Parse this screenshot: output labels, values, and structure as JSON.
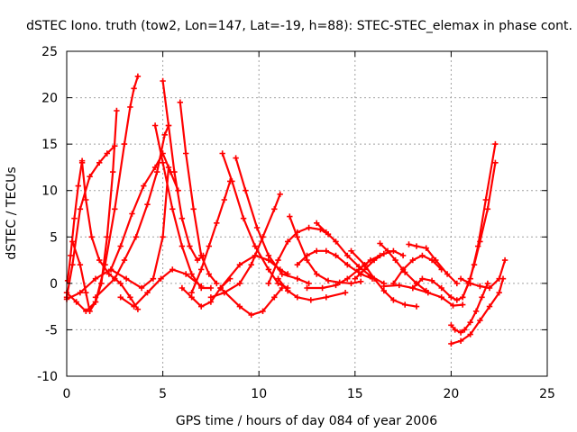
{
  "chart_data": {
    "type": "scatter",
    "title": "dSTEC Iono. truth (tow2, Lon=147, Lat=-19, h=88): STEC-STEC_elemax in phase cont.",
    "xlabel": "GPS time / hours of day 084 of year 2006",
    "ylabel": "dSTEC  / TECUs",
    "xlim": [
      0,
      25
    ],
    "ylim": [
      -10,
      25
    ],
    "xticks": [
      "0",
      "5",
      "10",
      "15",
      "20",
      "25"
    ],
    "yticks": [
      "-10",
      "-5",
      "0",
      "5",
      "10",
      "15",
      "20",
      "25"
    ],
    "grid": true,
    "marker": "plus",
    "color": "#ff0000",
    "series": [
      {
        "x": [
          0.05,
          0.2,
          0.4,
          0.6,
          0.8
        ],
        "y": [
          0.3,
          3.0,
          7.0,
          10.5,
          13.2
        ]
      },
      {
        "x": [
          0.8,
          1.0,
          1.3,
          1.7,
          2.2,
          2.8,
          3.3,
          3.7
        ],
        "y": [
          13.0,
          9.0,
          5.0,
          2.5,
          1.0,
          0.0,
          -1.5,
          -2.8
        ]
      },
      {
        "x": [
          0.0,
          0.5,
          1.0,
          1.5,
          2.0,
          2.5,
          3.0,
          3.3,
          3.5,
          3.7
        ],
        "y": [
          -1.0,
          -2.0,
          -3.0,
          -2.0,
          2.0,
          8.0,
          15.0,
          19.0,
          21.0,
          22.3
        ]
      },
      {
        "x": [
          0.0,
          0.3,
          0.7,
          1.2,
          1.7,
          2.1,
          2.5
        ],
        "y": [
          -1.5,
          2.0,
          8.0,
          11.5,
          13.0,
          14.0,
          14.8
        ]
      },
      {
        "x": [
          0.3,
          0.7,
          1.0,
          1.2,
          1.5,
          1.8,
          2.1,
          2.4,
          2.6
        ],
        "y": [
          4.5,
          2.0,
          -1.0,
          -3.0,
          -2.0,
          0.0,
          5.0,
          12.0,
          18.6
        ]
      },
      {
        "x": [
          0.0,
          0.7,
          1.5,
          2.3,
          3.1,
          3.9,
          4.5,
          5.0,
          5.3
        ],
        "y": [
          -1.7,
          -1.0,
          0.5,
          1.5,
          0.5,
          -0.5,
          0.5,
          5.0,
          12.5
        ]
      },
      {
        "x": [
          2.3,
          2.8,
          3.4,
          4.0,
          4.6,
          5.0,
          5.4,
          5.8
        ],
        "y": [
          1.5,
          4.0,
          7.5,
          10.5,
          12.5,
          14.0,
          12.0,
          10.0
        ]
      },
      {
        "x": [
          1.5,
          2.5,
          3.0,
          3.6,
          4.2,
          4.7,
          5.1,
          5.3
        ],
        "y": [
          -1.5,
          0.5,
          2.5,
          5.0,
          8.5,
          12.0,
          16.0,
          17.0
        ]
      },
      {
        "x": [
          5.0,
          5.3,
          5.6,
          6.0,
          6.4,
          6.8,
          7.1
        ],
        "y": [
          21.8,
          17.0,
          12.0,
          7.0,
          4.0,
          2.5,
          3.0
        ]
      },
      {
        "x": [
          4.6,
          5.0,
          5.5,
          6.0,
          6.5,
          7.0,
          7.5
        ],
        "y": [
          17.0,
          13.0,
          8.0,
          4.0,
          1.0,
          -0.5,
          -0.5
        ]
      },
      {
        "x": [
          5.9,
          6.2,
          6.6,
          7.0,
          7.4,
          7.8
        ],
        "y": [
          19.5,
          14.0,
          8.0,
          3.0,
          1.0,
          0.0
        ]
      },
      {
        "x": [
          2.8,
          3.5,
          4.2,
          4.9,
          5.5,
          6.2,
          7.0
        ],
        "y": [
          -1.5,
          -2.5,
          -1.0,
          0.5,
          1.5,
          1.0,
          -0.3
        ]
      },
      {
        "x": [
          6.0,
          6.5,
          7.0,
          7.5,
          8.0,
          8.5
        ],
        "y": [
          -0.5,
          -1.5,
          -2.5,
          -2.0,
          -0.5,
          0.5
        ]
      },
      {
        "x": [
          6.5,
          7.0,
          7.4,
          7.8,
          8.2,
          8.5
        ],
        "y": [
          -1.0,
          1.5,
          4.0,
          6.5,
          9.0,
          11.0
        ]
      },
      {
        "x": [
          8.1,
          8.6,
          9.2,
          9.8,
          10.5,
          11.0,
          11.5
        ],
        "y": [
          14.0,
          11.0,
          7.0,
          4.0,
          1.5,
          0.0,
          -0.5
        ]
      },
      {
        "x": [
          8.8,
          9.3,
          9.9,
          10.5,
          11.2,
          12.0,
          12.6
        ],
        "y": [
          13.5,
          10.0,
          6.0,
          3.0,
          1.0,
          0.5,
          0.0
        ]
      },
      {
        "x": [
          7.5,
          8.2,
          9.0,
          9.6,
          10.2,
          10.8,
          11.1
        ],
        "y": [
          -1.5,
          -1.0,
          0.0,
          2.0,
          5.0,
          8.0,
          9.6
        ]
      },
      {
        "x": [
          8.0,
          9.0,
          9.6,
          10.2,
          10.8,
          11.2
        ],
        "y": [
          -0.5,
          -2.5,
          -3.4,
          -3.0,
          -1.5,
          -0.5
        ]
      },
      {
        "x": [
          8.0,
          9.0,
          9.8,
          10.5,
          11.1,
          11.5
        ],
        "y": [
          -0.5,
          2.0,
          3.0,
          2.5,
          1.5,
          1.0
        ]
      },
      {
        "x": [
          10.5,
          11.0,
          11.5,
          12.0,
          12.6,
          13.2,
          13.6
        ],
        "y": [
          0.0,
          2.5,
          4.5,
          5.5,
          6.0,
          5.8,
          5.3
        ]
      },
      {
        "x": [
          11.0,
          11.5,
          12.0,
          12.7,
          13.5,
          14.5
        ],
        "y": [
          0.5,
          -0.8,
          -1.5,
          -1.8,
          -1.5,
          -1.0
        ]
      },
      {
        "x": [
          11.6,
          12.0,
          12.5,
          13.0,
          13.6,
          14.2,
          14.8,
          15.3
        ],
        "y": [
          7.2,
          5.0,
          2.5,
          1.0,
          0.3,
          0.1,
          0.0,
          0.2
        ]
      },
      {
        "x": [
          12.0,
          12.5,
          13.0,
          13.5,
          14.0,
          14.6,
          15.3,
          15.9
        ],
        "y": [
          2.0,
          3.0,
          3.5,
          3.5,
          3.0,
          2.0,
          1.0,
          0.5
        ]
      },
      {
        "x": [
          13.0,
          13.5,
          14.0,
          14.6,
          15.2,
          15.8,
          16.5
        ],
        "y": [
          6.5,
          5.5,
          4.5,
          3.0,
          1.8,
          0.8,
          0.0
        ]
      },
      {
        "x": [
          12.5,
          13.3,
          14.0,
          14.6,
          15.2,
          15.8,
          16.3
        ],
        "y": [
          -0.5,
          -0.5,
          -0.2,
          0.5,
          1.5,
          2.5,
          3.0
        ]
      },
      {
        "x": [
          14.8,
          15.5,
          16.0,
          16.5,
          17.0,
          17.6,
          18.2
        ],
        "y": [
          3.5,
          2.0,
          0.5,
          -0.8,
          -1.8,
          -2.3,
          -2.5
        ]
      },
      {
        "x": [
          15.0,
          15.5,
          16.0,
          16.5,
          17.0,
          17.5
        ],
        "y": [
          0.5,
          1.5,
          2.5,
          3.2,
          3.5,
          3.0
        ]
      },
      {
        "x": [
          16.3,
          16.7,
          17.1,
          17.6,
          18.2,
          18.7
        ],
        "y": [
          4.3,
          3.5,
          2.5,
          1.2,
          0.0,
          -0.8
        ]
      },
      {
        "x": [
          17.0,
          17.5,
          18.0,
          18.5,
          19.0,
          19.5
        ],
        "y": [
          0.0,
          1.5,
          2.5,
          3.0,
          2.5,
          1.5
        ]
      },
      {
        "x": [
          17.8,
          18.2,
          18.7,
          19.2,
          19.8,
          20.3
        ],
        "y": [
          4.2,
          4.0,
          3.8,
          2.5,
          1.0,
          0.0
        ]
      },
      {
        "x": [
          18.0,
          18.5,
          19.0,
          19.5,
          20.0,
          20.3,
          20.6,
          21.0,
          21.4,
          21.8,
          22.3
        ],
        "y": [
          -0.5,
          0.5,
          0.3,
          -0.5,
          -1.5,
          -1.8,
          -1.5,
          0.5,
          4.0,
          9.0,
          15.0
        ]
      },
      {
        "x": [
          16.5,
          17.3,
          18.0,
          18.8,
          19.5,
          20.1,
          20.6
        ],
        "y": [
          -0.3,
          -0.2,
          -0.5,
          -1.0,
          -1.5,
          -2.4,
          -2.3
        ]
      },
      {
        "x": [
          20.0,
          20.5,
          21.0,
          21.5,
          22.0,
          22.5,
          22.7
        ],
        "y": [
          -6.5,
          -6.2,
          -5.5,
          -4.0,
          -2.5,
          -1.0,
          0.5
        ]
      },
      {
        "x": [
          20.0,
          20.2,
          20.5,
          20.7,
          21.0,
          21.3,
          21.6,
          21.9
        ],
        "y": [
          -4.5,
          -5.0,
          -5.3,
          -5.0,
          -4.2,
          -3.0,
          -1.5,
          0.0
        ]
      },
      {
        "x": [
          20.5,
          21.0,
          21.5,
          22.0,
          22.5,
          22.8
        ],
        "y": [
          0.5,
          0.0,
          -0.3,
          -0.5,
          0.5,
          2.5
        ]
      },
      {
        "x": [
          20.6,
          20.9,
          21.2,
          21.5,
          21.9,
          22.3
        ],
        "y": [
          -1.5,
          0.0,
          2.0,
          4.5,
          8.0,
          13.0
        ]
      }
    ]
  }
}
